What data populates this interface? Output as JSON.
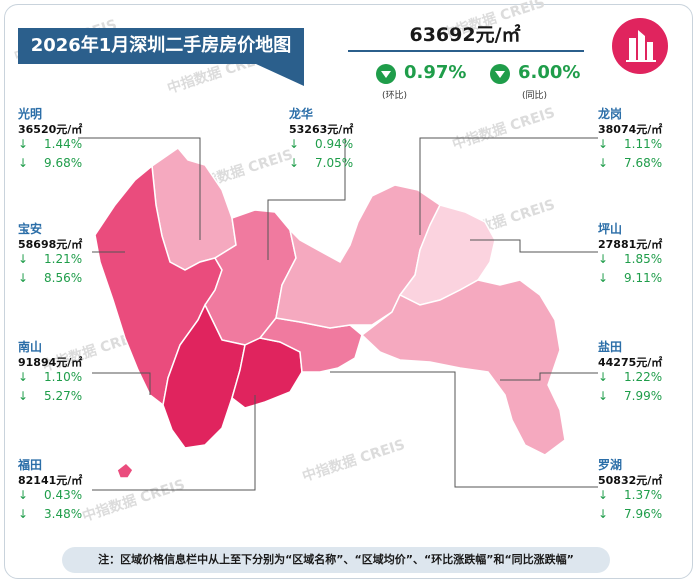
{
  "title": "2026年1月深圳二手房房价地图",
  "overall": {
    "price": "63692元/㎡",
    "mom_value": "0.97%",
    "mom_label": "(环比)",
    "yoy_value": "6.00%",
    "yoy_label": "(同比)",
    "direction": "down"
  },
  "watermark_text": "中指数据  CREIS",
  "note": "注：区域价格信息栏中从上至下分别为“区域名称”、“区域均价”、“环比涨跌幅”和“同比涨跌幅”",
  "arrow_glyph": "↓",
  "colors": {
    "title_bg": "#2b5f8c",
    "down": "#1f9d4a",
    "name": "#2b6ea8",
    "map_darkest": "#e0245e",
    "map_dark": "#ea4c7d",
    "map_mid": "#f07a9f",
    "map_light": "#f5a9bf",
    "map_lightest": "#fbd3df"
  },
  "chart_data": {
    "type": "table",
    "unit": "元/㎡",
    "districts": [
      {
        "name": "光明",
        "price": "36520元/㎡",
        "mom": "1.44%",
        "yoy": "9.68%"
      },
      {
        "name": "宝安",
        "price": "58698元/㎡",
        "mom": "1.21%",
        "yoy": "8.56%"
      },
      {
        "name": "南山",
        "price": "91894元/㎡",
        "mom": "1.10%",
        "yoy": "5.27%"
      },
      {
        "name": "福田",
        "price": "82141元/㎡",
        "mom": "0.43%",
        "yoy": "3.48%"
      },
      {
        "name": "龙华",
        "price": "53263元/㎡",
        "mom": "0.94%",
        "yoy": "7.05%"
      },
      {
        "name": "龙岗",
        "price": "38074元/㎡",
        "mom": "1.11%",
        "yoy": "7.68%"
      },
      {
        "name": "坪山",
        "price": "27881元/㎡",
        "mom": "1.85%",
        "yoy": "9.11%"
      },
      {
        "name": "盐田",
        "price": "44275元/㎡",
        "mom": "1.22%",
        "yoy": "7.99%"
      },
      {
        "name": "罗湖",
        "price": "50832元/㎡",
        "mom": "1.37%",
        "yoy": "7.96%"
      }
    ]
  }
}
